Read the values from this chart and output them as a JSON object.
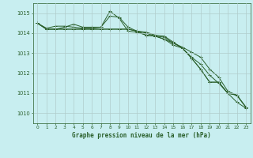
{
  "title": "Graphe pression niveau de la mer (hPa)",
  "background_color": "#c8eef0",
  "grid_color": "#b0cccc",
  "line_color": "#2a5f2a",
  "xlim": [
    -0.5,
    23.5
  ],
  "ylim": [
    1009.5,
    1015.5
  ],
  "yticks": [
    1010,
    1011,
    1012,
    1013,
    1014,
    1015
  ],
  "xticks": [
    0,
    1,
    2,
    3,
    4,
    5,
    6,
    7,
    8,
    9,
    10,
    11,
    12,
    13,
    14,
    15,
    16,
    17,
    18,
    19,
    20,
    21,
    22,
    23
  ],
  "series": [
    [
      1014.5,
      1014.2,
      1014.2,
      1014.2,
      1014.2,
      1014.2,
      1014.2,
      1014.2,
      1014.2,
      1014.2,
      1014.2,
      1014.1,
      1014.05,
      1013.9,
      1013.85,
      1013.55,
      1013.25,
      1012.8,
      1012.45,
      1011.9,
      1011.5,
      1011.0,
      1010.55,
      1010.25
    ],
    [
      1014.5,
      1014.25,
      1014.35,
      1014.35,
      1014.3,
      1014.25,
      1014.25,
      1014.3,
      1015.1,
      1014.75,
      1014.1,
      1014.05,
      1013.9,
      1013.85,
      1013.7,
      1013.5,
      1013.3,
      1013.05,
      1012.8,
      1012.2,
      1011.8,
      1011.1,
      1010.9,
      1010.3
    ],
    [
      1014.5,
      1014.2,
      1014.2,
      1014.3,
      1014.45,
      1014.3,
      1014.3,
      1014.3,
      1014.85,
      1014.8,
      1014.3,
      1014.1,
      1013.9,
      1013.85,
      1013.7,
      1013.4,
      1013.25,
      1012.75,
      1012.2,
      1011.55,
      1011.55,
      1011.0,
      1010.9,
      1010.3
    ],
    [
      1014.5,
      1014.2,
      1014.2,
      1014.2,
      1014.2,
      1014.2,
      1014.2,
      1014.2,
      1014.2,
      1014.2,
      1014.2,
      1014.1,
      1014.0,
      1013.85,
      1013.8,
      1013.5,
      1013.25,
      1012.75,
      1012.2,
      1011.55,
      1011.55,
      1011.0,
      1010.9,
      1010.3
    ]
  ]
}
